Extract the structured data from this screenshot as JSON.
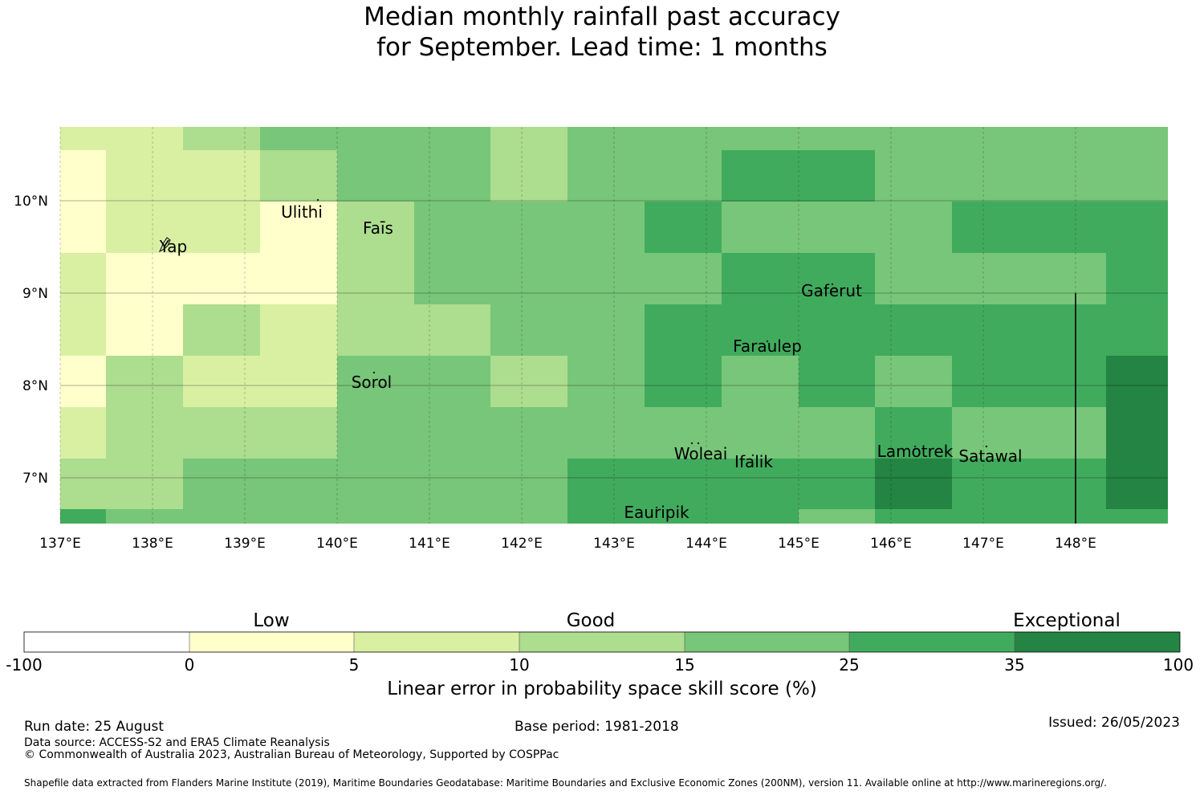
{
  "title": {
    "line1": "Median monthly rainfall past accuracy",
    "line2": "for September. Lead time: 1 months"
  },
  "map": {
    "lon_labels": [
      "137°E",
      "138°E",
      "139°E",
      "140°E",
      "141°E",
      "142°E",
      "143°E",
      "144°E",
      "145°E",
      "146°E",
      "147°E",
      "148°E"
    ],
    "lat_labels": [
      "10°N",
      "9°N",
      "8°N",
      "7°N"
    ],
    "places": [
      {
        "name": "Ulithi"
      },
      {
        "name": "Yap"
      },
      {
        "name": "Faīs"
      },
      {
        "name": "Gaferut"
      },
      {
        "name": "Faraulep"
      },
      {
        "name": "Sorol"
      },
      {
        "name": "Woleai"
      },
      {
        "name": "Ifalik"
      },
      {
        "name": "Lamotrek"
      },
      {
        "name": "Satawal"
      },
      {
        "name": "Eauripik"
      }
    ],
    "skill_class_colors": [
      "#ffffff",
      "#ffffcc",
      "#d9f0a3",
      "#addd8e",
      "#78c679",
      "#41ab5d",
      "#238443"
    ],
    "skill_grid": [
      [
        2,
        2,
        3,
        4,
        4,
        4,
        3,
        4,
        4,
        4,
        4,
        4,
        4,
        4,
        4
      ],
      [
        1,
        2,
        2,
        3,
        4,
        4,
        3,
        4,
        4,
        5,
        5,
        4,
        4,
        4,
        4
      ],
      [
        1,
        2,
        2,
        1,
        3,
        4,
        4,
        4,
        5,
        4,
        4,
        4,
        5,
        5,
        5
      ],
      [
        2,
        1,
        1,
        1,
        3,
        4,
        4,
        4,
        4,
        5,
        5,
        4,
        4,
        4,
        5
      ],
      [
        2,
        1,
        3,
        2,
        3,
        3,
        4,
        4,
        5,
        5,
        5,
        5,
        5,
        5,
        5
      ],
      [
        1,
        3,
        2,
        2,
        4,
        4,
        3,
        4,
        5,
        4,
        5,
        4,
        5,
        5,
        6
      ],
      [
        2,
        3,
        3,
        3,
        4,
        4,
        4,
        4,
        4,
        4,
        4,
        5,
        4,
        4,
        6
      ],
      [
        3,
        3,
        4,
        4,
        4,
        4,
        4,
        5,
        5,
        5,
        5,
        6,
        5,
        5,
        6
      ],
      [
        5,
        4,
        4,
        4,
        4,
        4,
        4,
        5,
        5,
        5,
        4,
        5,
        5,
        5,
        5
      ]
    ]
  },
  "colorbar": {
    "category_labels": [
      "Low",
      "Good",
      "Exceptional"
    ],
    "ticks": [
      "-100",
      "0",
      "5",
      "10",
      "15",
      "25",
      "35",
      "100"
    ],
    "colors": [
      "#ffffff",
      "#ffffcc",
      "#d9f0a3",
      "#addd8e",
      "#78c679",
      "#41ab5d",
      "#238443"
    ],
    "title": "Linear error in probability space skill score (%)"
  },
  "footer": {
    "run_date": "Run date: 25 August",
    "base_period": "Base period: 1981-2018",
    "issued": "Issued: 26/05/2023",
    "data_source": "Data source: ACCESS-S2 and ERA5 Climate Reanalysis",
    "copyright": "© Commonwealth of Australia 2023, Australian Bureau of Meteorology, Supported by COSPPac",
    "shapefile": "Shapefile data extracted from Flanders Marine Institute (2019), Maritime Boundaries Geodatabase: Maritime Boundaries and Exclusive Economic Zones (200NM), version 11. Available online at http://www.marineregions.org/."
  }
}
